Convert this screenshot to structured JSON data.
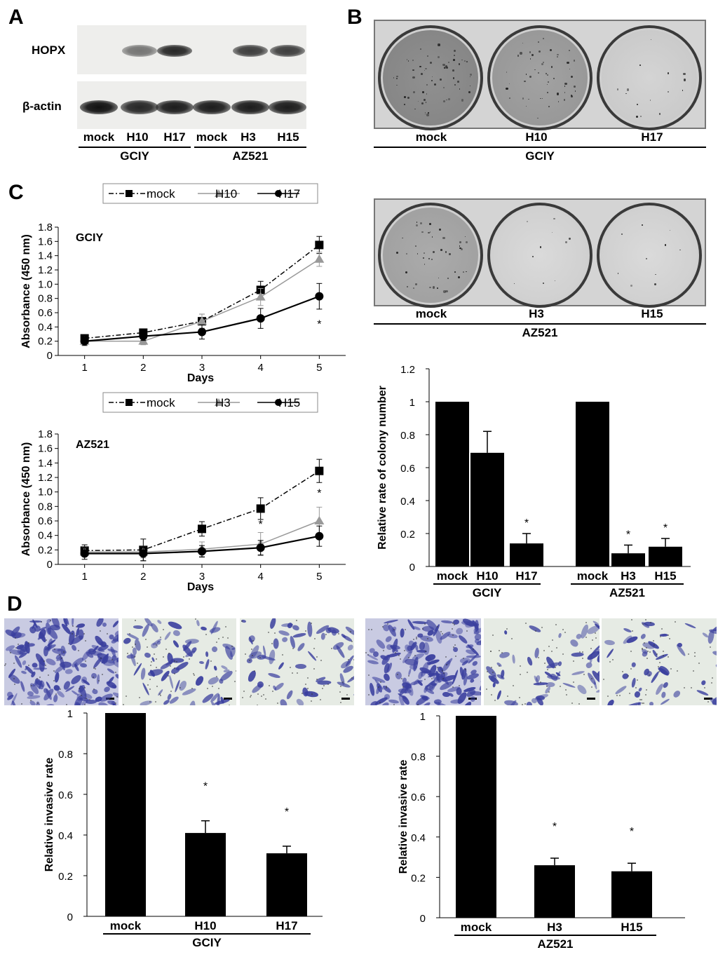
{
  "panels": {
    "A": "A",
    "B": "B",
    "C": "C",
    "D": "D"
  },
  "western": {
    "rows": [
      "HOPX",
      "β-actin"
    ],
    "lanes": [
      "mock",
      "H10",
      "H17",
      "mock",
      "H3",
      "H15"
    ],
    "groups": [
      "GCIY",
      "AZ521"
    ],
    "hopx_intensity": [
      0,
      0.55,
      0.9,
      0,
      0.8,
      0.8
    ],
    "actin_intensity": [
      1,
      0.9,
      0.95,
      0.95,
      0.95,
      0.95
    ]
  },
  "colony": {
    "gciy": {
      "labels": [
        "mock",
        "H10",
        "H17"
      ],
      "group": "GCIY",
      "density": [
        0.9,
        0.7,
        0.15
      ]
    },
    "az521": {
      "labels": [
        "mock",
        "H3",
        "H15"
      ],
      "group": "AZ521",
      "density": [
        0.6,
        0.08,
        0.08
      ]
    }
  },
  "invasion_images": {
    "gciy": {
      "density": [
        1.0,
        0.45,
        0.35
      ]
    },
    "az521": {
      "density": [
        1.0,
        0.35,
        0.3
      ]
    }
  },
  "colors": {
    "mock": "#000000",
    "h_low": "#999999",
    "h_high": "#000000",
    "stain": "#3a3f9e"
  },
  "chart_data": [
    {
      "type": "line",
      "panel": "C-GCIY",
      "title": "GCIY",
      "xlabel": "Days",
      "ylabel": "Absorbance (450 nm)",
      "x": [
        1,
        2,
        3,
        4,
        5
      ],
      "xticks": [
        "1",
        "2",
        "3",
        "4",
        "5"
      ],
      "ylim": [
        0,
        1.8
      ],
      "yticks": [
        "0",
        "0.2",
        "0.4",
        "0.6",
        "0.8",
        "1.0",
        "1.2",
        "1.4",
        "1.6",
        "1.8"
      ],
      "legend": [
        "mock",
        "H10",
        "H17"
      ],
      "series": [
        {
          "name": "mock",
          "values": [
            0.24,
            0.32,
            0.48,
            0.92,
            1.55
          ],
          "errors": [
            0.05,
            0.04,
            0.1,
            0.12,
            0.12
          ],
          "style": "dashdot",
          "marker": "square",
          "color": "#000000"
        },
        {
          "name": "H10",
          "values": [
            0.2,
            0.2,
            0.48,
            0.82,
            1.35
          ],
          "errors": [
            0.04,
            0.05,
            0.1,
            0.12,
            0.1
          ],
          "style": "solid",
          "marker": "triangle",
          "color": "#999999"
        },
        {
          "name": "H17",
          "values": [
            0.2,
            0.27,
            0.33,
            0.52,
            0.83
          ],
          "errors": [
            0.06,
            0.06,
            0.1,
            0.14,
            0.18
          ],
          "style": "solid",
          "marker": "circle",
          "color": "#000000"
        }
      ],
      "annotations": [
        {
          "x": 5,
          "y": 0.45,
          "text": "*"
        }
      ]
    },
    {
      "type": "line",
      "panel": "C-AZ521",
      "title": "AZ521",
      "xlabel": "Days",
      "ylabel": "Absorbance (450 nm)",
      "x": [
        1,
        2,
        3,
        4,
        5
      ],
      "xticks": [
        "1",
        "2",
        "3",
        "4",
        "5"
      ],
      "ylim": [
        0,
        1.8
      ],
      "yticks": [
        "0",
        "0.2",
        "0.4",
        "0.6",
        "0.8",
        "1.0",
        "1.2",
        "1.4",
        "1.6",
        "1.8"
      ],
      "legend": [
        "mock",
        "H3",
        "H15"
      ],
      "series": [
        {
          "name": "mock",
          "values": [
            0.19,
            0.2,
            0.49,
            0.77,
            1.29
          ],
          "errors": [
            0.08,
            0.15,
            0.1,
            0.15,
            0.16
          ],
          "style": "dashdot",
          "marker": "square",
          "color": "#000000"
        },
        {
          "name": "H3",
          "values": [
            0.17,
            0.17,
            0.21,
            0.28,
            0.6
          ],
          "errors": [
            0.06,
            0.08,
            0.1,
            0.16,
            0.19
          ],
          "style": "solid",
          "marker": "triangle",
          "color": "#999999"
        },
        {
          "name": "H15",
          "values": [
            0.15,
            0.15,
            0.18,
            0.23,
            0.39
          ],
          "errors": [
            0.08,
            0.1,
            0.08,
            0.1,
            0.14
          ],
          "style": "solid",
          "marker": "circle",
          "color": "#000000"
        }
      ],
      "annotations": [
        {
          "x": 4,
          "y": 0.56,
          "text": "*"
        },
        {
          "x": 5,
          "y": 0.99,
          "text": "*"
        }
      ]
    },
    {
      "type": "bar",
      "panel": "B-colony",
      "ylabel": "Relative rate of colony number",
      "ylim": [
        0,
        1.2
      ],
      "yticks": [
        "0",
        "0.2",
        "0.4",
        "0.6",
        "0.8",
        "1",
        "1.2"
      ],
      "categories": [
        "mock",
        "H10",
        "H17",
        "mock",
        "H3",
        "H15"
      ],
      "groups": [
        {
          "name": "GCIY",
          "indices": [
            0,
            1,
            2
          ]
        },
        {
          "name": "AZ521",
          "indices": [
            3,
            4,
            5
          ]
        }
      ],
      "values": [
        1.0,
        0.69,
        0.14,
        1.0,
        0.08,
        0.12
      ],
      "errors": [
        0,
        0.13,
        0.06,
        0,
        0.05,
        0.05
      ],
      "significance": [
        "",
        "",
        "*",
        "",
        "*",
        "*"
      ]
    },
    {
      "type": "bar",
      "panel": "D-GCIY",
      "ylabel": "Relative invasive rate",
      "ylim": [
        0,
        1
      ],
      "yticks": [
        "0",
        "0.2",
        "0.4",
        "0.6",
        "0.8",
        "1"
      ],
      "categories": [
        "mock",
        "H10",
        "H17"
      ],
      "group": "GCIY",
      "values": [
        1.0,
        0.41,
        0.31
      ],
      "errors": [
        0,
        0.06,
        0.035
      ],
      "significance": [
        "",
        "*",
        "*"
      ]
    },
    {
      "type": "bar",
      "panel": "D-AZ521",
      "ylabel": "Relative invasive rate",
      "ylim": [
        0,
        1
      ],
      "yticks": [
        "0",
        "0.2",
        "0.4",
        "0.6",
        "0.8",
        "1"
      ],
      "categories": [
        "mock",
        "H3",
        "H15"
      ],
      "group": "AZ521",
      "values": [
        1.0,
        0.26,
        0.23
      ],
      "errors": [
        0,
        0.035,
        0.04
      ],
      "significance": [
        "",
        "*",
        "*"
      ]
    }
  ]
}
